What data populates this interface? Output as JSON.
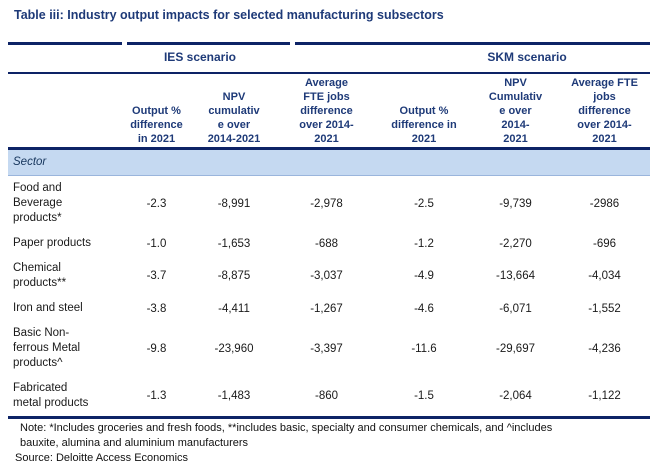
{
  "title": "Table iii: Industry output impacts for selected manufacturing subsectors",
  "colors": {
    "heading_navy": "#1e3a78",
    "rule_navy": "#0d2366",
    "sector_band_blue": "#c5d9f1",
    "sector_divider_blue": "#9ab5dc",
    "body_text": "#1a1a1a"
  },
  "table": {
    "scenarios": [
      "IES scenario",
      "SKM scenario"
    ],
    "sector_header": "Sector",
    "columns": [
      "Output %\ndifference\nin 2021",
      "NPV\ncumulativ\ne over\n2014-2021",
      "Average\nFTE jobs\ndifference\nover 2014-\n2021",
      "Output %\ndifference in\n2021",
      "NPV\nCumulativ\ne over\n2014-\n2021",
      "Average FTE\njobs\ndifference\nover 2014-\n2021"
    ],
    "rows": [
      {
        "sector": "Food and\nBeverage\nproducts*",
        "values": [
          "-2.3",
          "-8,991",
          "-2,978",
          "-2.5",
          "-9,739",
          "-2986"
        ]
      },
      {
        "sector": "Paper products",
        "values": [
          "-1.0",
          "-1,653",
          "-688",
          "-1.2",
          "-2,270",
          "-696"
        ]
      },
      {
        "sector": "Chemical\nproducts**",
        "values": [
          "-3.7",
          "-8,875",
          "-3,037",
          "-4.9",
          "-13,664",
          "-4,034"
        ]
      },
      {
        "sector": "Iron and steel",
        "values": [
          "-3.8",
          "-4,411",
          "-1,267",
          "-4.6",
          "-6,071",
          "-1,552"
        ]
      },
      {
        "sector": "Basic Non-\nferrous Metal\nproducts^",
        "values": [
          "-9.8",
          "-23,960",
          "-3,397",
          "-11.6",
          "-29,697",
          "-4,236"
        ]
      },
      {
        "sector": "Fabricated\nmetal products",
        "values": [
          "-1.3",
          "-1,483",
          "-860",
          "-1.5",
          "-2,064",
          "-1,122"
        ]
      }
    ]
  },
  "note": "Note: *Includes groceries and fresh foods, **includes basic, specialty and consumer chemicals, and ^includes\nbauxite, alumina and aluminium manufacturers",
  "source": "Source: Deloitte Access Economics"
}
